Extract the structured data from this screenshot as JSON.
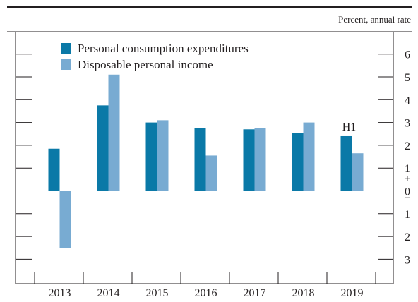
{
  "note": "Percent, annual rate",
  "colors": {
    "pce": "#0a79a7",
    "dpi": "#78abd2",
    "axis": "#231f20"
  },
  "chart_data": {
    "type": "bar",
    "title": "",
    "xlabel": "",
    "ylabel": "Percent, annual rate",
    "categories": [
      "2013",
      "2014",
      "2015",
      "2016",
      "2017",
      "2018",
      "2019"
    ],
    "series": [
      {
        "name": "Personal consumption expenditures",
        "values": [
          1.85,
          3.75,
          3.0,
          2.75,
          2.7,
          2.55,
          2.4
        ],
        "color": "#0a79a7"
      },
      {
        "name": "Disposable personal income",
        "values": [
          -2.5,
          5.1,
          3.1,
          1.55,
          2.75,
          3.0,
          1.65
        ],
        "color": "#78abd2"
      }
    ],
    "ylim": [
      -3,
      6
    ],
    "y_tick_labels": [
      "6",
      "5",
      "4",
      "3",
      "2",
      "1",
      "+",
      "0",
      "−",
      "1",
      "2",
      "3"
    ],
    "annotations": [
      {
        "text": "H1",
        "category": "2019",
        "y": 2.4
      }
    ],
    "legend_position": "top-left",
    "grid": false
  }
}
